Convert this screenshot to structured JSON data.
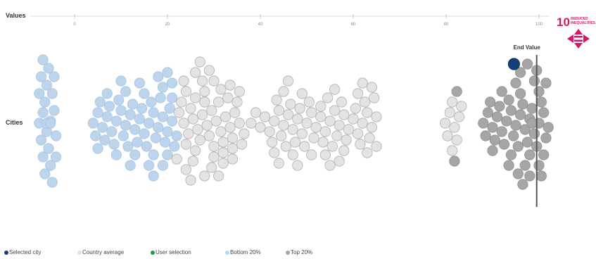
{
  "chart_data": {
    "type": "scatter",
    "subtype": "beeswarm",
    "axis_title": "Values",
    "row_label": "Cities",
    "ticks": [
      "0",
      "20",
      "40",
      "60",
      "80",
      "100"
    ],
    "tick_values": [
      0,
      20,
      40,
      60,
      80,
      100
    ],
    "xlim": [
      -15,
      103
    ],
    "reference_line": {
      "label": "End Value",
      "value": 99.5
    },
    "groups": [
      {
        "name": "Bottom 20%",
        "color": "#bcd4ec",
        "values": [
          -7.6,
          -6.8,
          -6.0,
          -5.2,
          -4.4,
          -7.2,
          -6.4,
          -5.6,
          -4.8,
          -4.0,
          -7.6,
          -6.8,
          -6.0,
          -5.2,
          -4.4,
          -7.2,
          -6.4,
          -5.6,
          -4.8,
          -4.0,
          -6.8,
          -6.0,
          -5.2,
          4.0,
          5.0,
          6.0,
          7.0,
          8.0,
          9.0,
          10.0,
          11.0,
          12.0,
          13.0,
          14.0,
          15.0,
          16.0,
          17.0,
          18.0,
          19.0,
          20.0,
          21.0,
          4.5,
          5.5,
          6.5,
          7.5,
          8.5,
          9.5,
          10.5,
          11.5,
          12.5,
          13.5,
          14.5,
          15.5,
          16.5,
          17.5,
          18.5,
          19.5,
          20.5,
          21.5,
          5.0,
          7.0,
          9.0,
          11.0,
          13.0,
          15.0,
          17.0,
          19.0,
          21.0,
          10.0,
          12.0,
          14.0,
          16.0,
          18.0,
          20.0,
          17.0,
          19.0,
          21.0,
          20.0,
          22.0
        ]
      },
      {
        "name": "Country average",
        "color": "#e3e3e3",
        "values": [
          22.5,
          23.5,
          24.5,
          25.5,
          26.5,
          27.5,
          28.5,
          29.5,
          30.5,
          31.5,
          32.5,
          33.5,
          34.5,
          35.5,
          36.5,
          23.0,
          24.0,
          25.0,
          26.0,
          27.0,
          28.0,
          29.0,
          30.0,
          31.0,
          32.0,
          33.0,
          34.0,
          35.0,
          22.0,
          24.0,
          26.0,
          28.0,
          30.0,
          32.0,
          34.0,
          36.0,
          23.5,
          25.5,
          27.5,
          29.5,
          31.5,
          33.5,
          35.5,
          24.0,
          26.0,
          28.0,
          30.0,
          32.0,
          34.0,
          25.0,
          27.0,
          29.0,
          31.0,
          38.0,
          39.0,
          40.0,
          41.0,
          42.0,
          43.0,
          44.0,
          45.0,
          46.0,
          47.0,
          48.0,
          49.0,
          50.0,
          51.0,
          52.0,
          53.0,
          42.5,
          43.5,
          44.5,
          45.5,
          46.5,
          47.5,
          48.5,
          49.5,
          50.5,
          51.5,
          43.0,
          45.0,
          47.0,
          49.0,
          51.0,
          44.0,
          46.0,
          48.0,
          53.0,
          54.0,
          55.0,
          56.0,
          57.0,
          58.0,
          59.0,
          53.5,
          54.5,
          55.5,
          56.5,
          57.5,
          58.5,
          54.0,
          56.0,
          58.0,
          55.0,
          57.0,
          60.0,
          61.0,
          62.0,
          63.0,
          64.0,
          65.0,
          60.5,
          61.5,
          62.5,
          63.5,
          64.5,
          61.0,
          63.0,
          65.0,
          62.0,
          64.0,
          79.8,
          80.8,
          81.8,
          82.8,
          80.3,
          81.3,
          82.3,
          81.3,
          83.3
        ]
      },
      {
        "name": "Top 20%",
        "color": "#a6a6a6",
        "values": [
          82.3,
          81.8,
          88.0,
          89.0,
          90.0,
          91.0,
          92.0,
          93.0,
          94.0,
          95.0,
          96.0,
          97.0,
          98.0,
          99.0,
          100.0,
          101.0,
          102.0,
          88.5,
          89.5,
          90.5,
          91.5,
          92.5,
          93.5,
          94.5,
          95.5,
          96.5,
          97.5,
          98.5,
          99.5,
          100.5,
          101.5,
          90.0,
          92.0,
          94.0,
          96.0,
          98.0,
          100.0,
          95.0,
          97.0,
          99.0,
          101.0,
          96.0,
          98.0,
          100.0,
          93.5,
          95.5,
          97.5,
          99.5,
          101.5,
          96.5,
          98.5,
          100.5
        ]
      },
      {
        "name": "User selection",
        "color": "#2a9a3a",
        "values": []
      },
      {
        "name": "Selected city",
        "color": "#123f7a",
        "values": [
          94.6
        ]
      }
    ],
    "legend": [
      {
        "label": "Selected city",
        "color": "#123f7a"
      },
      {
        "label": "Country average",
        "color": "#e3e3e3"
      },
      {
        "label": "User selection",
        "color": "#2a9a3a"
      },
      {
        "label": "Bottom 20%",
        "color": "#bcd4ec"
      },
      {
        "label": "Top 20%",
        "color": "#a6a6a6"
      }
    ]
  },
  "sdg_badge": {
    "number": "10",
    "title_line1": "REDUCED",
    "title_line2": "INEQUALITIES",
    "color": "#dd1367"
  }
}
